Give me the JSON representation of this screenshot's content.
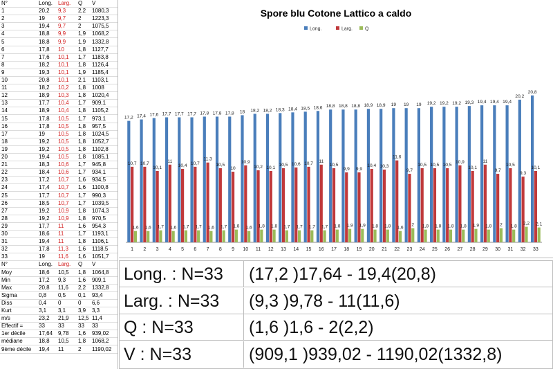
{
  "table": {
    "headers": [
      "N°",
      "Long.",
      "Larg.",
      "Q",
      "V"
    ],
    "rows": [
      [
        "1",
        "20,2",
        "9,3",
        "2,2",
        "1080,3"
      ],
      [
        "2",
        "19",
        "9,7",
        "2",
        "1223,3"
      ],
      [
        "3",
        "19,4",
        "9,7",
        "2",
        "1075,5"
      ],
      [
        "4",
        "18,8",
        "9,9",
        "1,9",
        "1068,2"
      ],
      [
        "5",
        "18,8",
        "9,9",
        "1,9",
        "1332,8"
      ],
      [
        "6",
        "17,8",
        "10",
        "1,8",
        "1127,7"
      ],
      [
        "7",
        "17,6",
        "10,1",
        "1,7",
        "1183,8"
      ],
      [
        "8",
        "18,2",
        "10,1",
        "1,8",
        "1126,4"
      ],
      [
        "9",
        "19,3",
        "10,1",
        "1,9",
        "1185,4"
      ],
      [
        "10",
        "20,8",
        "10,1",
        "2,1",
        "1103,1"
      ],
      [
        "11",
        "18,2",
        "10,2",
        "1,8",
        "1008"
      ],
      [
        "12",
        "18,9",
        "10,3",
        "1,8",
        "1020,4"
      ],
      [
        "13",
        "17,7",
        "10,4",
        "1,7",
        "909,1"
      ],
      [
        "14",
        "18,9",
        "10,4",
        "1,8",
        "1105,2"
      ],
      [
        "15",
        "17,8",
        "10,5",
        "1,7",
        "973,1"
      ],
      [
        "16",
        "17,8",
        "10,5",
        "1,8",
        "957,5"
      ],
      [
        "17",
        "19",
        "10,5",
        "1,8",
        "1024,5"
      ],
      [
        "18",
        "19,2",
        "10,5",
        "1,8",
        "1052,7"
      ],
      [
        "19",
        "19,2",
        "10,5",
        "1,8",
        "1102,8"
      ],
      [
        "20",
        "19,4",
        "10,5",
        "1,8",
        "1085,1"
      ],
      [
        "21",
        "18,3",
        "10,6",
        "1,7",
        "945,8"
      ],
      [
        "22",
        "18,4",
        "10,6",
        "1,7",
        "934,1"
      ],
      [
        "23",
        "17,2",
        "10,7",
        "1,6",
        "934,5"
      ],
      [
        "24",
        "17,4",
        "10,7",
        "1,6",
        "1100,8"
      ],
      [
        "25",
        "17,7",
        "10,7",
        "1,7",
        "990,3"
      ],
      [
        "26",
        "18,5",
        "10,7",
        "1,7",
        "1039,5"
      ],
      [
        "27",
        "19,2",
        "10,9",
        "1,8",
        "1074,3"
      ],
      [
        "28",
        "19,2",
        "10,9",
        "1,8",
        "970,5"
      ],
      [
        "29",
        "17,7",
        "11",
        "1,6",
        "954,3"
      ],
      [
        "30",
        "18,6",
        "11",
        "1,7",
        "1193,1"
      ],
      [
        "31",
        "19,4",
        "11",
        "1,8",
        "1106,1"
      ],
      [
        "32",
        "17,8",
        "11,3",
        "1,6",
        "1118,5"
      ],
      [
        "33",
        "19",
        "11,6",
        "1,6",
        "1051,7"
      ]
    ],
    "summary_headers": [
      "N°",
      "Long.",
      "Larg.",
      "Q",
      "V"
    ],
    "summary_rows": [
      [
        "Moy",
        "18,6",
        "10,5",
        "1,8",
        "1064,8"
      ],
      [
        "Min",
        "17,2",
        "9,3",
        "1,6",
        "909,1"
      ],
      [
        "Max",
        "20,8",
        "11,6",
        "2,2",
        "1332,8"
      ],
      [
        "Sigma",
        "0,8",
        "0,5",
        "0,1",
        "93,4"
      ],
      [
        "Diss",
        "0,4",
        "0",
        "0",
        "6,6"
      ],
      [
        "Kurt",
        "3,1",
        "3,1",
        "3,9",
        "3,3"
      ],
      [
        "m/s",
        "23,2",
        "21,9",
        "12,5",
        "11,4"
      ],
      [
        "Effectif =",
        "33",
        "33",
        "33",
        "33"
      ],
      [
        "1er décile",
        "17,64",
        "9,78",
        "1,6",
        "939,02"
      ],
      [
        "médiane",
        "18,8",
        "10,5",
        "1,8",
        "1068,2"
      ],
      [
        "9ème décile",
        "19,4",
        "11",
        "2",
        "1190,02"
      ]
    ]
  },
  "chart_data": {
    "type": "bar",
    "title": "Spore blu Cotone Lattico a caldo",
    "categories": [
      "1",
      "2",
      "3",
      "4",
      "5",
      "6",
      "7",
      "8",
      "9",
      "10",
      "11",
      "12",
      "13",
      "14",
      "15",
      "16",
      "17",
      "18",
      "19",
      "20",
      "21",
      "22",
      "23",
      "24",
      "25",
      "26",
      "27",
      "28",
      "29",
      "30",
      "31",
      "32",
      "33"
    ],
    "series": [
      {
        "name": "Long.",
        "color": "#4a7ebb",
        "values": [
          17.2,
          17.4,
          17.6,
          17.7,
          17.7,
          17.7,
          17.8,
          17.8,
          17.8,
          18,
          18.2,
          18.2,
          18.3,
          18.4,
          18.5,
          18.6,
          18.8,
          18.8,
          18.8,
          18.9,
          18.9,
          19,
          19,
          19,
          19.2,
          19.2,
          19.2,
          19.3,
          19.4,
          19.4,
          19.4,
          20.2,
          20.8
        ],
        "labels": [
          "17,2",
          "17,4",
          "17,6",
          "17,7",
          "17,7",
          "17,7",
          "17,8",
          "17,8",
          "17,8",
          "18",
          "18,2",
          "18,2",
          "18,3",
          "18,4",
          "18,5",
          "18,6",
          "18,8",
          "18,8",
          "18,8",
          "18,9",
          "18,9",
          "19",
          "19",
          "19",
          "19,2",
          "19,2",
          "19,2",
          "19,3",
          "19,4",
          "19,4",
          "19,4",
          "20,2",
          "20,8"
        ]
      },
      {
        "name": "Larg.",
        "color": "#c0393b",
        "values": [
          10.7,
          10.7,
          10.1,
          11,
          10.4,
          10.7,
          11.3,
          10.5,
          10,
          10.9,
          10.2,
          10.1,
          10.5,
          10.6,
          10.7,
          11,
          10.5,
          9.9,
          9.9,
          10.4,
          10.3,
          11.6,
          9.7,
          10.5,
          10.5,
          10.5,
          10.9,
          10.1,
          11,
          9.7,
          10.5,
          9.3,
          10.1
        ],
        "labels": [
          "10,7",
          "10,7",
          "10,1",
          "11",
          "10,4",
          "10,7",
          "11,3",
          "10,5",
          "10",
          "10,9",
          "10,2",
          "10,1",
          "10,5",
          "10,6",
          "10,7",
          "11",
          "10,5",
          "9,9",
          "9,9",
          "10,4",
          "10,3",
          "11,6",
          "9,7",
          "10,5",
          "10,5",
          "10,5",
          "10,9",
          "10,1",
          "11",
          "9,7",
          "10,5",
          "9,3",
          "10,1"
        ]
      },
      {
        "name": "Q",
        "color": "#9bbb59",
        "values": [
          1.6,
          1.6,
          1.7,
          1.6,
          1.7,
          1.7,
          1.6,
          1.7,
          1.8,
          1.6,
          1.8,
          1.8,
          1.7,
          1.7,
          1.7,
          1.7,
          1.8,
          1.9,
          1.9,
          1.8,
          1.8,
          1.6,
          2,
          1.8,
          1.8,
          1.8,
          1.8,
          1.9,
          1.8,
          2,
          1.8,
          2.2,
          2.1
        ],
        "labels": [
          "1,6",
          "1,6",
          "1,7",
          "1,6",
          "1,7",
          "1,7",
          "1,6",
          "1,7",
          "1,8",
          "1,6",
          "1,8",
          "1,8",
          "1,7",
          "1,7",
          "1,7",
          "1,7",
          "1,8",
          "1,9",
          "1,9",
          "1,8",
          "1,8",
          "1,6",
          "2",
          "1,8",
          "1,8",
          "1,8",
          "1,8",
          "1,9",
          "1,8",
          "2",
          "1,8",
          "2,2",
          "2,1"
        ]
      }
    ],
    "ylim": [
      0,
      22
    ],
    "legend": "top",
    "grid": false
  },
  "stats": [
    {
      "label": "Long. : N=33",
      "range": "(17,2 )17,64 - 19,4(20,8)"
    },
    {
      "label": "Larg. : N=33",
      "range": "(9,3 )9,78 - 11(11,6)"
    },
    {
      "label": "Q : N=33",
      "range": "(1,6 )1,6 - 2(2,2)"
    },
    {
      "label": "V : N=33",
      "range": "(909,1 )939,02 - 1190,02(1332,8)"
    }
  ]
}
